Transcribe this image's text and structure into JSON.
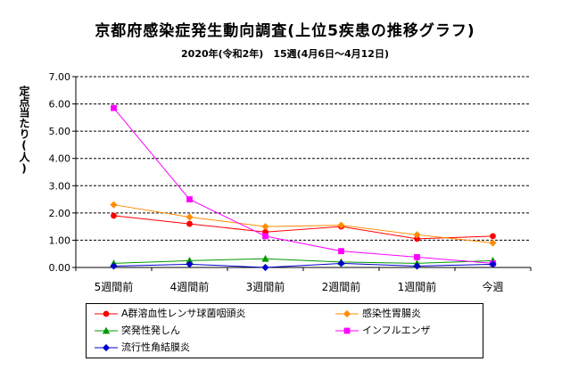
{
  "chart_data": {
    "type": "line",
    "title": "京都府感染症発生動向調査(上位5疾患の推移グラフ)",
    "subtitle": "2020年(令和2年)　15週(4月6日～4月12日)",
    "ylabel": "定点当たり(人)",
    "xlabel": "",
    "categories": [
      "5週間前",
      "4週間前",
      "3週間前",
      "2週間前",
      "1週間前",
      "今週"
    ],
    "y_ticks": [
      "0.00",
      "1.00",
      "2.00",
      "3.00",
      "4.00",
      "5.00",
      "6.00",
      "7.00"
    ],
    "ylim": [
      0,
      7
    ],
    "grid": "horizontal dashed",
    "legend_position": "bottom",
    "series": [
      {
        "name": "A群溶血性レンサ球菌咽頭炎",
        "color": "#ff0000",
        "marker": "circle",
        "values": [
          1.9,
          1.6,
          1.3,
          1.5,
          1.05,
          1.15
        ]
      },
      {
        "name": "感染性胃腸炎",
        "color": "#ff8c00",
        "marker": "diamond",
        "values": [
          2.3,
          1.85,
          1.5,
          1.55,
          1.2,
          0.9
        ]
      },
      {
        "name": "突発性発しん",
        "color": "#009900",
        "marker": "triangle",
        "values": [
          0.15,
          0.25,
          0.32,
          0.2,
          0.15,
          0.25
        ]
      },
      {
        "name": "インフルエンザ",
        "color": "#ff00ff",
        "marker": "square",
        "values": [
          5.85,
          2.5,
          1.15,
          0.6,
          0.38,
          0.15
        ]
      },
      {
        "name": "流行性角結膜炎",
        "color": "#0000cc",
        "marker": "diamond",
        "values": [
          0.05,
          0.12,
          0.0,
          0.15,
          0.05,
          0.12
        ]
      }
    ]
  }
}
